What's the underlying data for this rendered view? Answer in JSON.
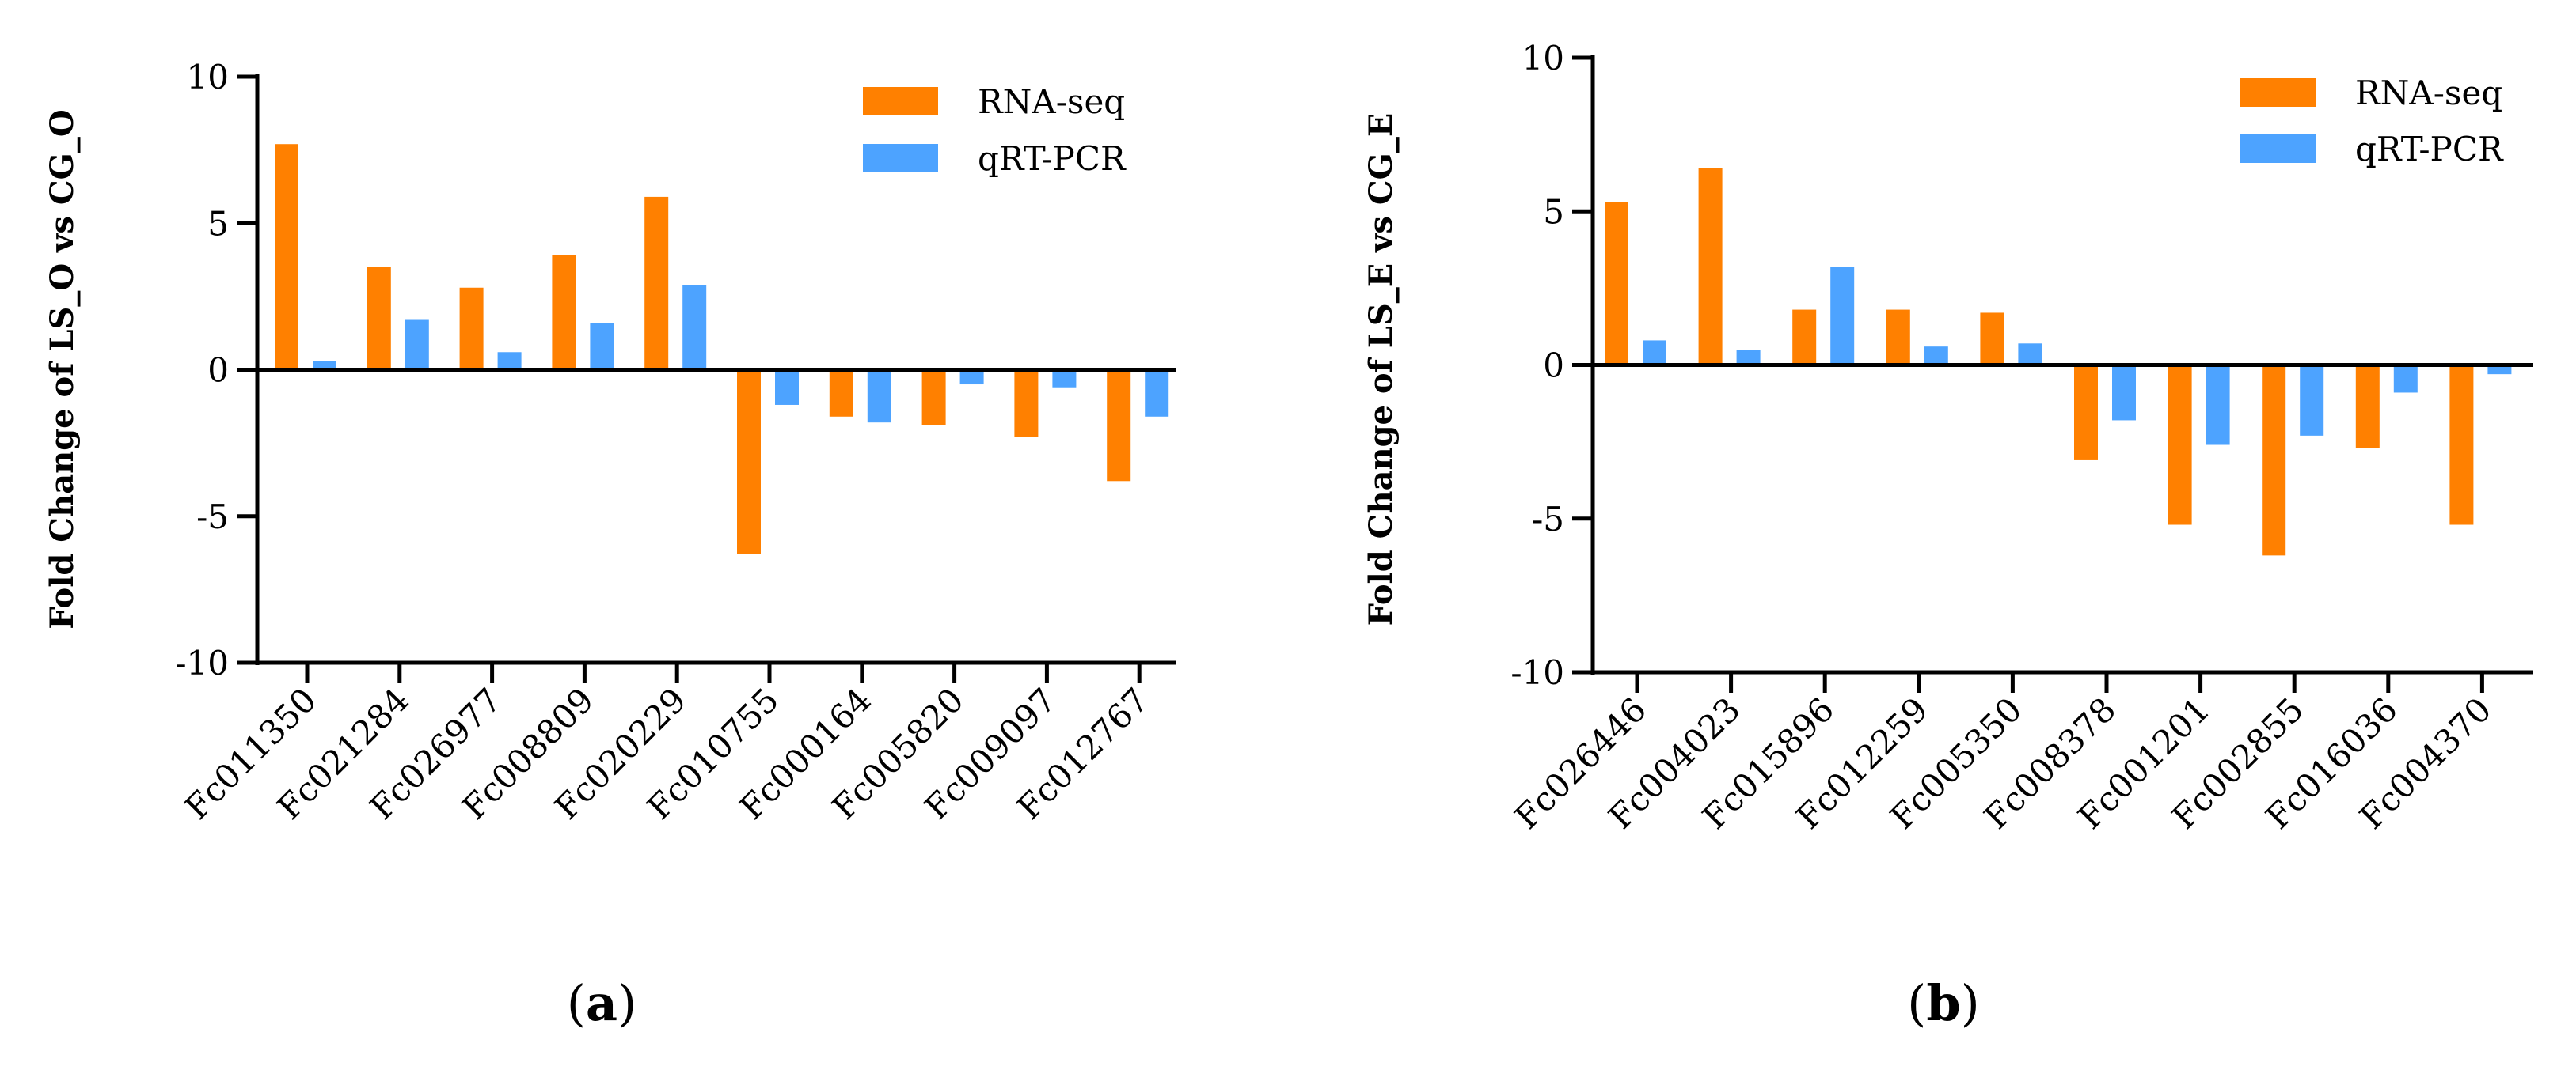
{
  "colors": {
    "rna_seq": "#ff8000",
    "qrt_pcr": "#4da3ff",
    "axis": "#000000"
  },
  "chart_data": [
    {
      "type": "bar",
      "panel_label": "a",
      "ylabel": "Fold Change of LS_O vs CG_O",
      "ylim": [
        -10,
        10
      ],
      "yticks": [
        "10",
        "5",
        "0",
        "-5",
        "-10"
      ],
      "ytick_values": [
        10,
        5,
        0,
        -5,
        -10
      ],
      "legend": {
        "placement": "top-right",
        "entries": [
          "RNA-seq",
          "qRT-PCR"
        ]
      },
      "categories": [
        "Fc011350",
        "Fc021284",
        "Fc026977",
        "Fc008809",
        "Fc020229",
        "Fc010755",
        "Fc000164",
        "Fc005820",
        "Fc009097",
        "Fc012767"
      ],
      "series": [
        {
          "name": "RNA-seq",
          "values": [
            7.7,
            3.5,
            2.8,
            3.9,
            5.9,
            -6.3,
            -1.6,
            -1.9,
            -2.3,
            -3.8
          ]
        },
        {
          "name": "qRT-PCR",
          "values": [
            0.3,
            1.7,
            0.6,
            1.6,
            2.9,
            -1.2,
            -1.8,
            -0.5,
            -0.6,
            -1.6
          ]
        }
      ]
    },
    {
      "type": "bar",
      "panel_label": "b",
      "ylabel": "Fold Change of LS_E vs CG_E",
      "ylim": [
        -10,
        10
      ],
      "yticks": [
        "10",
        "5",
        "0",
        "-5",
        "-10"
      ],
      "ytick_values": [
        10,
        5,
        0,
        -5,
        -10
      ],
      "legend": {
        "placement": "top-right",
        "entries": [
          "RNA-seq",
          "qRT-PCR"
        ]
      },
      "categories": [
        "Fc026446",
        "Fc004023",
        "Fc015896",
        "Fc012259",
        "Fc005350",
        "Fc008378",
        "Fc001201",
        "Fc002855",
        "Fc016036",
        "Fc004370"
      ],
      "series": [
        {
          "name": "RNA-seq",
          "values": [
            5.3,
            6.4,
            1.8,
            1.8,
            1.7,
            -3.1,
            -5.2,
            -6.2,
            -2.7,
            -5.2
          ]
        },
        {
          "name": "qRT-PCR",
          "values": [
            0.8,
            0.5,
            3.2,
            0.6,
            0.7,
            -1.8,
            -2.6,
            -2.3,
            -0.9,
            -0.3
          ]
        }
      ]
    }
  ]
}
